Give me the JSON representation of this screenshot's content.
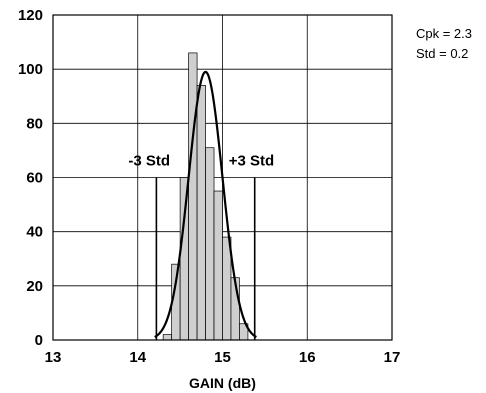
{
  "chart_data": {
    "type": "bar",
    "xlabel": "GAIN (dB)",
    "ylabel": "",
    "xlim": [
      13,
      17
    ],
    "ylim": [
      0,
      120
    ],
    "x_ticks": [
      "13",
      "14",
      "15",
      "16",
      "17"
    ],
    "y_ticks": [
      "0",
      "20",
      "40",
      "60",
      "80",
      "100",
      "120"
    ],
    "grid": true,
    "bin_width": 0.1,
    "bins": [
      {
        "left": 14.3,
        "value": 2
      },
      {
        "left": 14.4,
        "value": 28
      },
      {
        "left": 14.5,
        "value": 60
      },
      {
        "left": 14.6,
        "value": 106
      },
      {
        "left": 14.7,
        "value": 94
      },
      {
        "left": 14.8,
        "value": 71
      },
      {
        "left": 14.9,
        "value": 55
      },
      {
        "left": 15.0,
        "value": 38
      },
      {
        "left": 15.1,
        "value": 23
      },
      {
        "left": 15.2,
        "value": 6
      }
    ],
    "normal_fit": {
      "mean": 14.8,
      "std": 0.2,
      "peak": 99
    },
    "spec_lines": [
      {
        "label": "-3 Std",
        "x": 14.22,
        "height": 60
      },
      {
        "label": "+3 Std",
        "x": 15.38,
        "height": 60
      }
    ],
    "stats": [
      "Cpk = 2.3",
      "Std = 0.2"
    ]
  }
}
